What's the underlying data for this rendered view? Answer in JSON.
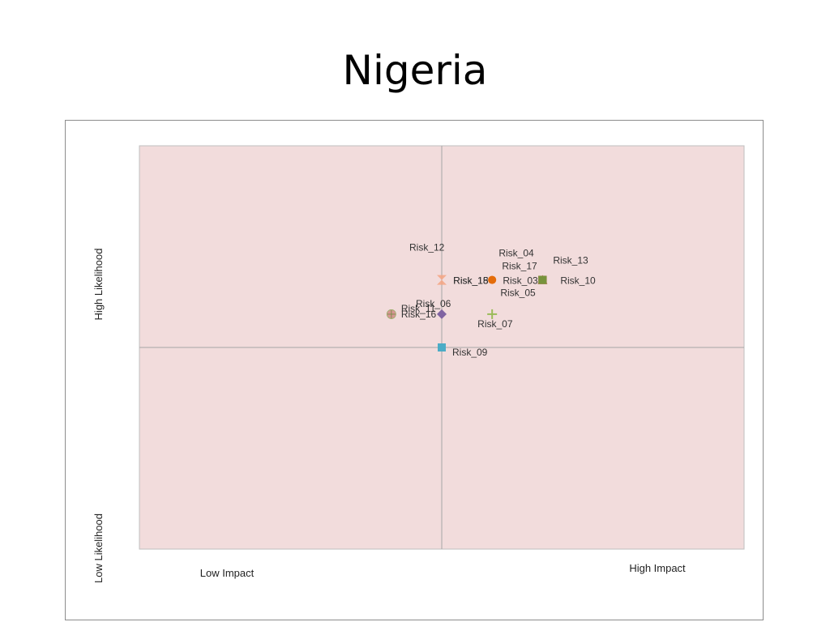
{
  "slide": {
    "title": "Nigeria"
  },
  "chart_data": {
    "type": "scatter",
    "title": "",
    "xlabel": "",
    "ylabel": "",
    "xlim": [
      0,
      6
    ],
    "ylim": [
      0,
      4
    ],
    "x_divider": 3,
    "y_divider": 2,
    "grid": false,
    "background_color": "#f2dcdc",
    "divider_color": "#a6a6a6",
    "axis_labels": {
      "x_low": "Low Impact",
      "x_high": "High Impact",
      "y_low": "Low Likelihood",
      "y_high": "High Likelihood"
    },
    "points": [
      {
        "label": "Risk_12",
        "x": 3.0,
        "y": 2.67,
        "marker": "x-triangle",
        "color": "#f4a582"
      },
      {
        "label": "Risk_15",
        "x": 3.5,
        "y": 2.67,
        "marker": "circle",
        "color": "#f58c4b"
      },
      {
        "label": "Risk_18",
        "x": 3.5,
        "y": 2.67,
        "marker": "circle",
        "color": "#e46c0a"
      },
      {
        "label": "Risk_04",
        "x": 4.0,
        "y": 2.67,
        "marker": "square",
        "color": "#c0504d"
      },
      {
        "label": "Risk_17",
        "x": 4.0,
        "y": 2.67,
        "marker": "triangle",
        "color": "#9bbb59"
      },
      {
        "label": "Risk_03",
        "x": 4.0,
        "y": 2.67,
        "marker": "square",
        "color": "#4f6228"
      },
      {
        "label": "Risk_13",
        "x": 4.0,
        "y": 2.67,
        "marker": "triangle",
        "color": "#c0504d"
      },
      {
        "label": "Risk_10",
        "x": 4.0,
        "y": 2.67,
        "marker": "square",
        "color": "#984807"
      },
      {
        "label": "Risk_05",
        "x": 4.0,
        "y": 2.67,
        "marker": "square",
        "color": "#77933c"
      },
      {
        "label": "Risk_06",
        "x": 3.0,
        "y": 2.33,
        "marker": "diamond",
        "color": "#8064a2"
      },
      {
        "label": "Risk_11",
        "x": 2.5,
        "y": 2.33,
        "marker": "circle-plus",
        "color": "#c3d69b"
      },
      {
        "label": "Risk_16",
        "x": 2.5,
        "y": 2.33,
        "marker": "circle-plus",
        "color": "#d99694"
      },
      {
        "label": "Risk_07",
        "x": 3.5,
        "y": 2.33,
        "marker": "plus",
        "color": "#9bbb59"
      },
      {
        "label": "Risk_09",
        "x": 3.0,
        "y": 2.0,
        "marker": "square",
        "color": "#4bacc6"
      }
    ]
  }
}
